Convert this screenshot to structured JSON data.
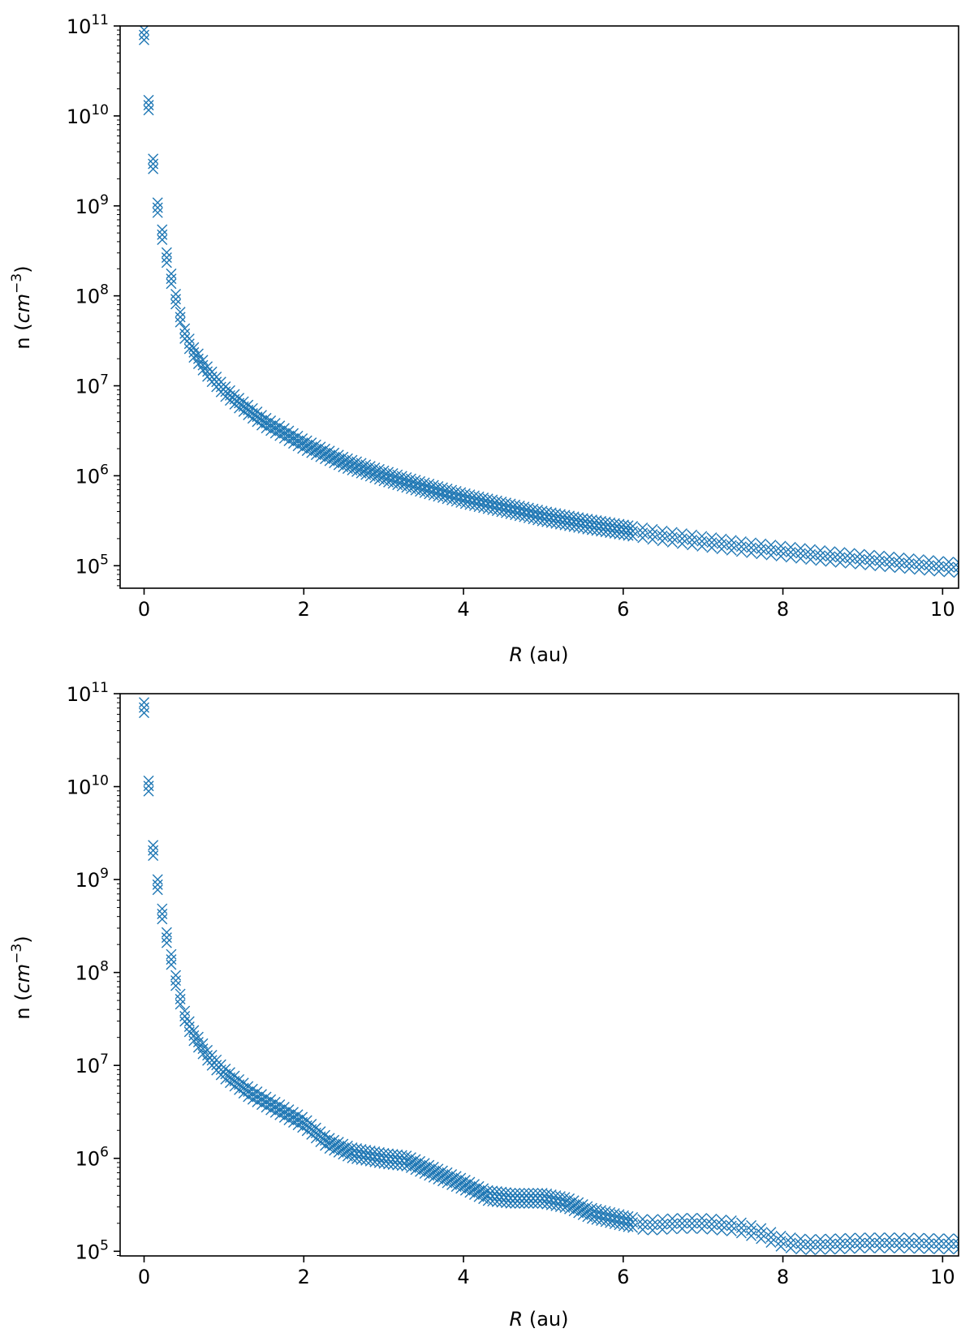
{
  "chart_data": [
    {
      "type": "scatter",
      "marker": "x",
      "color": "#1f77b4",
      "xlabel_var": "R",
      "xlabel_unit": "(au)",
      "ylabel_prefix": "n (",
      "ylabel_var": "cm",
      "ylabel_exp": "−3",
      "ylabel_suffix": ")",
      "xlim": [
        -0.3,
        10.2
      ],
      "ylim_log10": [
        4.75,
        11
      ],
      "yscale": "log",
      "xticks": [
        {
          "value": 0,
          "label": "0"
        },
        {
          "value": 2,
          "label": "2"
        },
        {
          "value": 4,
          "label": "4"
        },
        {
          "value": 6,
          "label": "6"
        },
        {
          "value": 8,
          "label": "8"
        },
        {
          "value": 10,
          "label": "10"
        }
      ],
      "yticks": [
        {
          "exp": 5,
          "base": "10",
          "sup": "5"
        },
        {
          "exp": 6,
          "base": "10",
          "sup": "6"
        },
        {
          "exp": 7,
          "base": "10",
          "sup": "7"
        },
        {
          "exp": 8,
          "base": "10",
          "sup": "8"
        },
        {
          "exp": 9,
          "base": "10",
          "sup": "9"
        },
        {
          "exp": 10,
          "base": "10",
          "sup": "10"
        },
        {
          "exp": 11,
          "base": "10",
          "sup": "11"
        }
      ],
      "series": [
        {
          "x": [
            0.0,
            0.02,
            0.05,
            0.1,
            0.15,
            0.2,
            0.3,
            0.4,
            0.5,
            0.6,
            0.8,
            1.0,
            1.2,
            1.5,
            2.0,
            2.5,
            3.0,
            3.5,
            4.0,
            4.5,
            5.0,
            5.5,
            6.0,
            6.5,
            7.0,
            7.5,
            8.0,
            8.5,
            9.0,
            9.5,
            10.0,
            10.2
          ],
          "y_log10": [
            10.9,
            10.6,
            10.2,
            9.6,
            9.1,
            8.8,
            8.35,
            7.95,
            7.6,
            7.4,
            7.15,
            6.95,
            6.8,
            6.6,
            6.35,
            6.15,
            6.0,
            5.87,
            5.75,
            5.65,
            5.55,
            5.47,
            5.4,
            5.33,
            5.27,
            5.21,
            5.16,
            5.11,
            5.07,
            5.03,
            4.99,
            4.98
          ],
          "band_width_log10": 0.14
        }
      ]
    },
    {
      "type": "scatter",
      "marker": "x",
      "color": "#1f77b4",
      "xlabel_var": "R",
      "xlabel_unit": "(au)",
      "ylabel_prefix": "n (",
      "ylabel_var": "cm",
      "ylabel_exp": "−3",
      "ylabel_suffix": ")",
      "xlim": [
        -0.3,
        10.2
      ],
      "ylim_log10": [
        4.95,
        11
      ],
      "yscale": "log",
      "xticks": [
        {
          "value": 0,
          "label": "0"
        },
        {
          "value": 2,
          "label": "2"
        },
        {
          "value": 4,
          "label": "4"
        },
        {
          "value": 6,
          "label": "6"
        },
        {
          "value": 8,
          "label": "8"
        },
        {
          "value": 10,
          "label": "10"
        }
      ],
      "yticks": [
        {
          "exp": 5,
          "base": "10",
          "sup": "5"
        },
        {
          "exp": 6,
          "base": "10",
          "sup": "6"
        },
        {
          "exp": 7,
          "base": "10",
          "sup": "7"
        },
        {
          "exp": 8,
          "base": "10",
          "sup": "8"
        },
        {
          "exp": 9,
          "base": "10",
          "sup": "9"
        },
        {
          "exp": 10,
          "base": "10",
          "sup": "10"
        },
        {
          "exp": 11,
          "base": "10",
          "sup": "11"
        }
      ],
      "series": [
        {
          "x": [
            0.0,
            0.02,
            0.05,
            0.1,
            0.2,
            0.3,
            0.4,
            0.5,
            0.6,
            0.8,
            1.0,
            1.3,
            1.6,
            2.0,
            2.3,
            2.6,
            3.0,
            3.3,
            3.6,
            4.0,
            4.3,
            4.6,
            5.0,
            5.3,
            5.6,
            6.0,
            6.3,
            6.7,
            7.0,
            7.4,
            7.7,
            8.0,
            8.3,
            8.7,
            9.0,
            9.5,
            10.0,
            10.2
          ],
          "y_log10": [
            10.85,
            10.5,
            10.1,
            9.4,
            8.75,
            8.3,
            7.9,
            7.55,
            7.35,
            7.1,
            6.92,
            6.72,
            6.57,
            6.38,
            6.17,
            6.06,
            6.0,
            5.97,
            5.86,
            5.72,
            5.6,
            5.57,
            5.57,
            5.52,
            5.41,
            5.33,
            5.28,
            5.3,
            5.3,
            5.27,
            5.2,
            5.1,
            5.07,
            5.08,
            5.09,
            5.09,
            5.08,
            5.08
          ],
          "band_width_log10": 0.14
        }
      ]
    }
  ]
}
